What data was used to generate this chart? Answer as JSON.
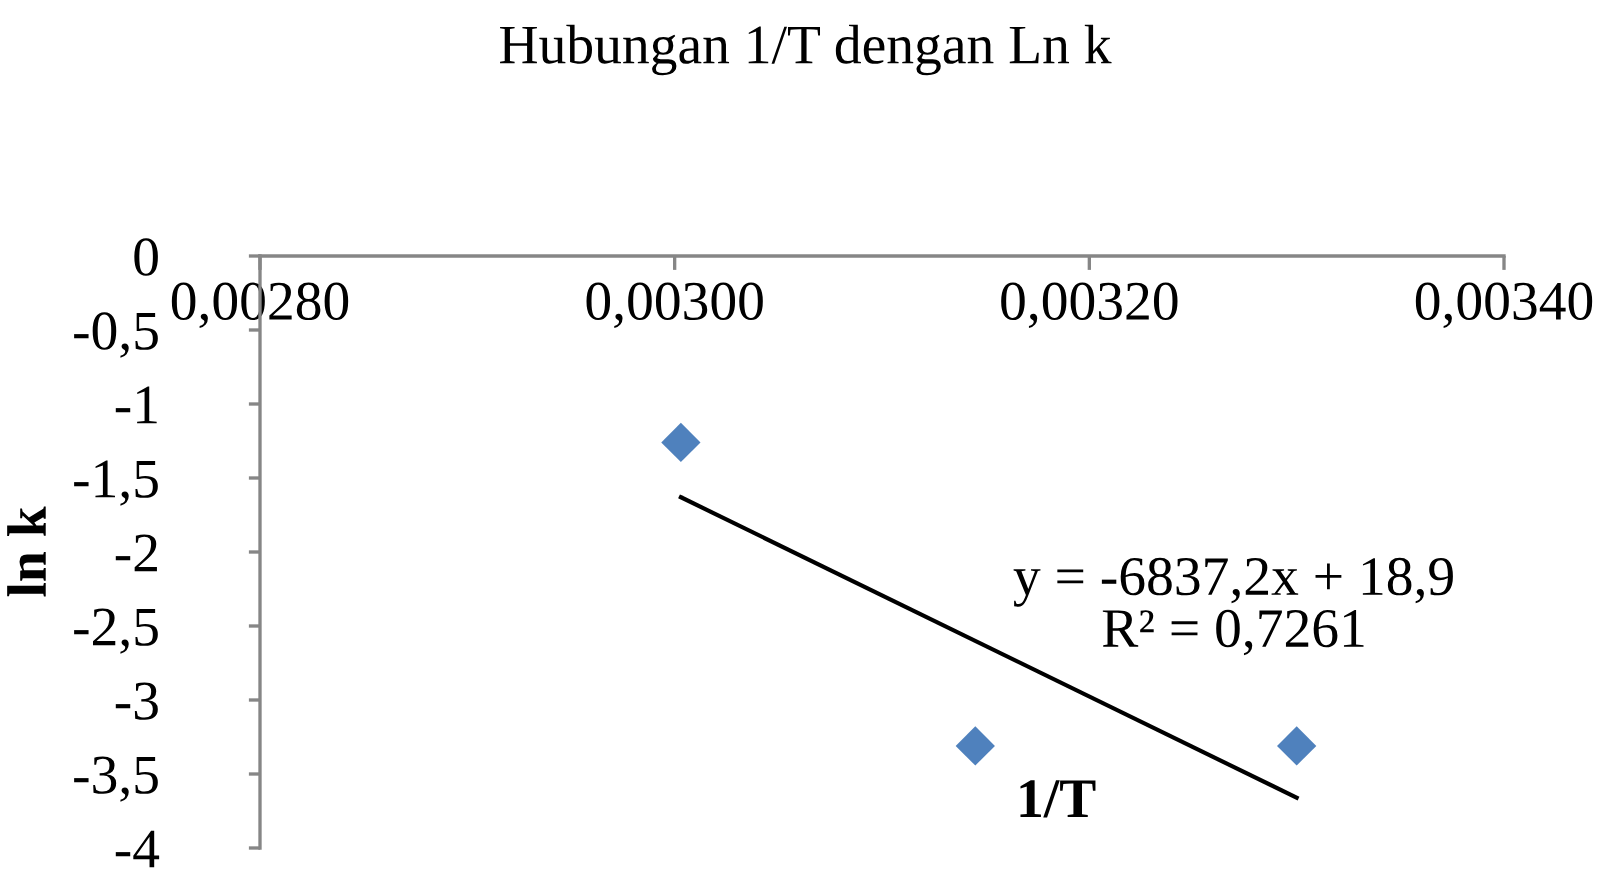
{
  "chart_data": {
    "type": "scatter",
    "title": "Hubungan 1/T dengan Ln k",
    "xlabel": "1/T",
    "ylabel": "ln k",
    "annotations": [
      "y = -6837,2x + 18,9",
      "R² = 0,7261"
    ],
    "series": [
      {
        "color": "#4f81bd",
        "marker": "diamond",
        "x": [
          0.003003,
          0.003145,
          0.0033
        ],
        "values": [
          -1.26,
          -3.31,
          -3.31
        ]
      },
      {
        "type": "line",
        "color": "#000000",
        "marker": "none",
        "line_style": "solid",
        "x": [
          0.003003,
          0.0033
        ],
        "values": [
          -1.63,
          -3.66
        ]
      }
    ],
    "xlim": [
      0.0028,
      0.0034
    ],
    "xticks": [
      {
        "value": 0.0028,
        "label": "0,00280"
      },
      {
        "value": 0.003,
        "label": "0,00300"
      },
      {
        "value": 0.0032,
        "label": "0,00320"
      },
      {
        "value": 0.0034,
        "label": "0,00340"
      }
    ],
    "ylim": [
      -4,
      0
    ],
    "yticks": [
      0,
      {
        "value": -0.5,
        "label": "-0,5"
      },
      -1,
      {
        "value": -1.5,
        "label": "-1,5"
      },
      -2,
      {
        "value": -2.5,
        "label": "-2,5"
      },
      -3,
      {
        "value": -3.5,
        "label": "-3,5"
      },
      -4
    ]
  }
}
